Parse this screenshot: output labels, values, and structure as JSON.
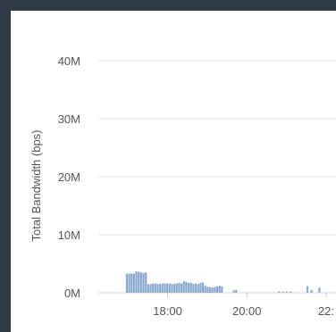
{
  "colors": {
    "background": "#2e3a45",
    "panel": "#ffffff",
    "bar": "#8aa9cd",
    "grid": "#e3e3e3",
    "text": "#555555"
  },
  "chart_data": {
    "type": "bar",
    "ylabel": "Total Bandwidth (bps)",
    "xlabel": "",
    "ylim": [
      0,
      40000000
    ],
    "y_ticks": [
      {
        "value": 0,
        "label": "0M"
      },
      {
        "value": 10000000,
        "label": "10M"
      },
      {
        "value": 20000000,
        "label": "20M"
      },
      {
        "value": 30000000,
        "label": "30M"
      },
      {
        "value": 40000000,
        "label": "40M"
      }
    ],
    "x_ticks": [
      {
        "value": 18.0,
        "label": "18:00"
      },
      {
        "value": 20.0,
        "label": "20:00"
      },
      {
        "value": 22.0,
        "label": "22:"
      }
    ],
    "xlim": [
      16.25,
      22.25
    ],
    "grid": true,
    "legend": "none",
    "series": [
      {
        "x": [
          16.97,
          17.03,
          17.09,
          17.15,
          17.21,
          17.27,
          17.33,
          17.39,
          17.45,
          17.51,
          17.57,
          17.63,
          17.69,
          17.75,
          17.81,
          17.87,
          17.93,
          17.99,
          18.05,
          18.11,
          18.17,
          18.23,
          18.29,
          18.35,
          18.41,
          18.47,
          18.53,
          18.59,
          18.65,
          18.71,
          18.77,
          18.83,
          18.89,
          18.95,
          19.01,
          19.07,
          19.13,
          19.19,
          19.25,
          19.31,
          19.37,
          19.43,
          19.67,
          19.73,
          19.79,
          20.81,
          20.91,
          21.01,
          21.11,
          21.53,
          21.63,
          21.83
        ],
        "values": [
          3300000,
          3300000,
          3300000,
          3300000,
          3700000,
          3600000,
          3500000,
          3400000,
          3500000,
          1500000,
          1500000,
          1600000,
          1600000,
          1500000,
          1500000,
          1600000,
          1600000,
          1600000,
          1600000,
          1500000,
          1500000,
          1600000,
          1700000,
          1600000,
          2000000,
          1900000,
          1700000,
          1700000,
          1500000,
          1600000,
          1500000,
          1700000,
          1800000,
          1200000,
          1000000,
          1000000,
          900000,
          1000000,
          1100000,
          1200000,
          1100000,
          0,
          400000,
          500000,
          0,
          200000,
          200000,
          200000,
          200000,
          1100000,
          500000,
          900000
        ]
      }
    ]
  }
}
